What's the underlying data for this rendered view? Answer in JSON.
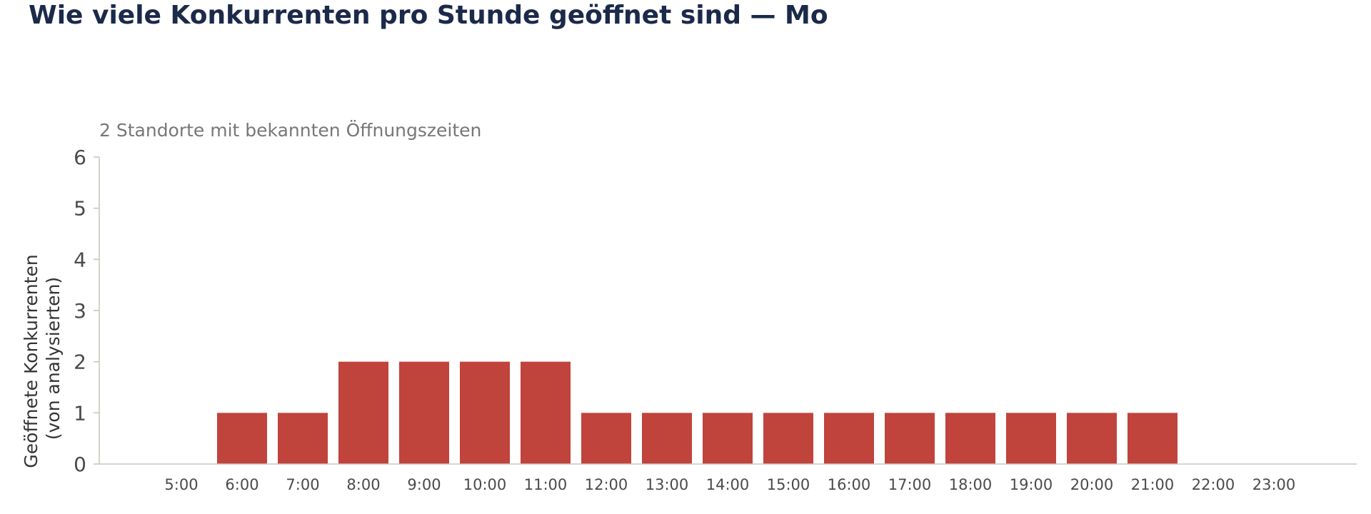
{
  "page": {
    "title": "Wie viele Konkurrenten pro Stunde geöffnet sind — Mo"
  },
  "chart_data": {
    "type": "bar",
    "subtitle": "2 Standorte mit bekannten Öffnungszeiten",
    "ylabel": "Geöffnete Konkurrenten\n(von analysierten)",
    "xlabel": "",
    "categories": [
      "5:00",
      "6:00",
      "7:00",
      "8:00",
      "9:00",
      "10:00",
      "11:00",
      "12:00",
      "13:00",
      "14:00",
      "15:00",
      "16:00",
      "17:00",
      "18:00",
      "19:00",
      "20:00",
      "21:00",
      "22:00",
      "23:00"
    ],
    "values": [
      0,
      1,
      1,
      2,
      2,
      2,
      2,
      1,
      1,
      1,
      1,
      1,
      1,
      1,
      1,
      1,
      1,
      0,
      0
    ],
    "ylim": [
      0,
      6
    ],
    "yticks": [
      0,
      1,
      2,
      3,
      4,
      5,
      6
    ],
    "grid": false,
    "legend": "none",
    "bar_color": "#c0433c",
    "axis_color": "#c8c8bd"
  }
}
